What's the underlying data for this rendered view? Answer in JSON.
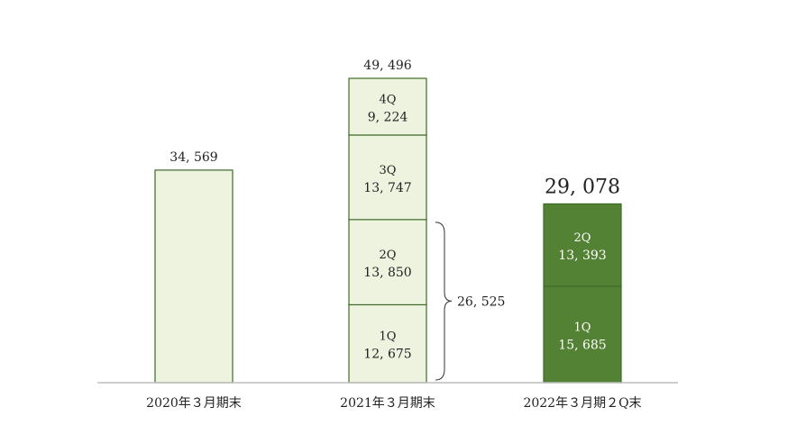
{
  "chart_data": {
    "type": "bar",
    "stacked": true,
    "categories": [
      "2020年３月期末",
      "2021年３月期末",
      "2022年３月期２Q末"
    ],
    "series": [
      {
        "name": "1Q",
        "values": [
          null,
          12675,
          15685
        ]
      },
      {
        "name": "2Q",
        "values": [
          null,
          13850,
          13393
        ]
      },
      {
        "name": "3Q",
        "values": [
          null,
          13747,
          null
        ]
      },
      {
        "name": "4Q",
        "values": [
          null,
          9224,
          null
        ]
      }
    ],
    "single_values": [
      34569,
      null,
      null
    ],
    "totals": [
      "34, 569",
      "49, 496",
      "29, 078"
    ],
    "segment_labels": [
      [],
      [
        {
          "quarter": "1Q",
          "value": "12, 675"
        },
        {
          "quarter": "2Q",
          "value": "13, 850"
        },
        {
          "quarter": "3Q",
          "value": "13, 747"
        },
        {
          "quarter": "4Q",
          "value": "9, 224"
        }
      ],
      [
        {
          "quarter": "1Q",
          "value": "15, 685"
        },
        {
          "quarter": "2Q",
          "value": "13, 393"
        }
      ]
    ],
    "bracket": {
      "category_index": 1,
      "from_segment": 0,
      "to_segment": 1,
      "label": "26, 525"
    },
    "ylim": [
      0,
      49496
    ],
    "grid": false,
    "legend": "none",
    "colors": {
      "light_fill": "#eef3e0",
      "light_stroke": "#3d6b27",
      "dark_fill": "#548235",
      "dark_stroke": "#3d6b27",
      "axis": "#bfbfbf"
    }
  }
}
